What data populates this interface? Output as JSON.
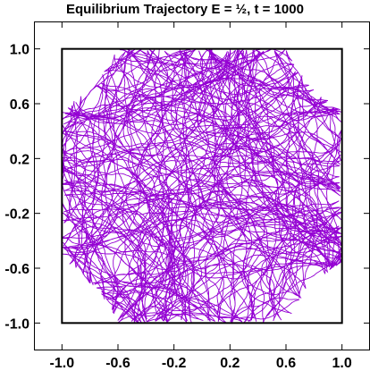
{
  "chart_data": {
    "type": "line",
    "title": "Equilibrium  Trajectory E = ½, t = 1000",
    "xlabel": "",
    "ylabel": "",
    "xlim": [
      -1.2,
      1.2
    ],
    "ylim": [
      -1.2,
      1.2
    ],
    "x_ticks": [
      -1.0,
      -0.6,
      -0.2,
      0.2,
      0.6,
      1.0
    ],
    "y_ticks": [
      1.0,
      0.6,
      0.2,
      -0.2,
      -0.6,
      -1.0
    ],
    "x_tick_labels": [
      "-1.0",
      "-0.6",
      "-0.2",
      "0.2",
      "0.6",
      "1.0"
    ],
    "y_tick_labels": [
      "1.0",
      "0.6",
      "0.2",
      "-0.2",
      "-0.6",
      "-1.0"
    ],
    "grid": false,
    "legend": false,
    "box": {
      "x": [
        -1.0,
        1.0
      ],
      "y": [
        -1.0,
        1.0
      ]
    },
    "series": [
      {
        "color": "#9400d3",
        "region_outline": [
          [
            -0.6,
            1.0
          ],
          [
            0.6,
            1.0
          ],
          [
            0.75,
            0.75
          ],
          [
            1.0,
            0.55
          ],
          [
            1.0,
            -0.55
          ],
          [
            0.75,
            -0.75
          ],
          [
            0.6,
            -1.0
          ],
          [
            -0.6,
            -1.0
          ],
          [
            -0.75,
            -0.75
          ],
          [
            -1.0,
            -0.55
          ],
          [
            -1.0,
            0.55
          ],
          [
            -0.75,
            0.75
          ]
        ]
      }
    ],
    "colors": {
      "trajectory": "#9400d3",
      "frame": "#000000",
      "box": "#000000"
    }
  }
}
